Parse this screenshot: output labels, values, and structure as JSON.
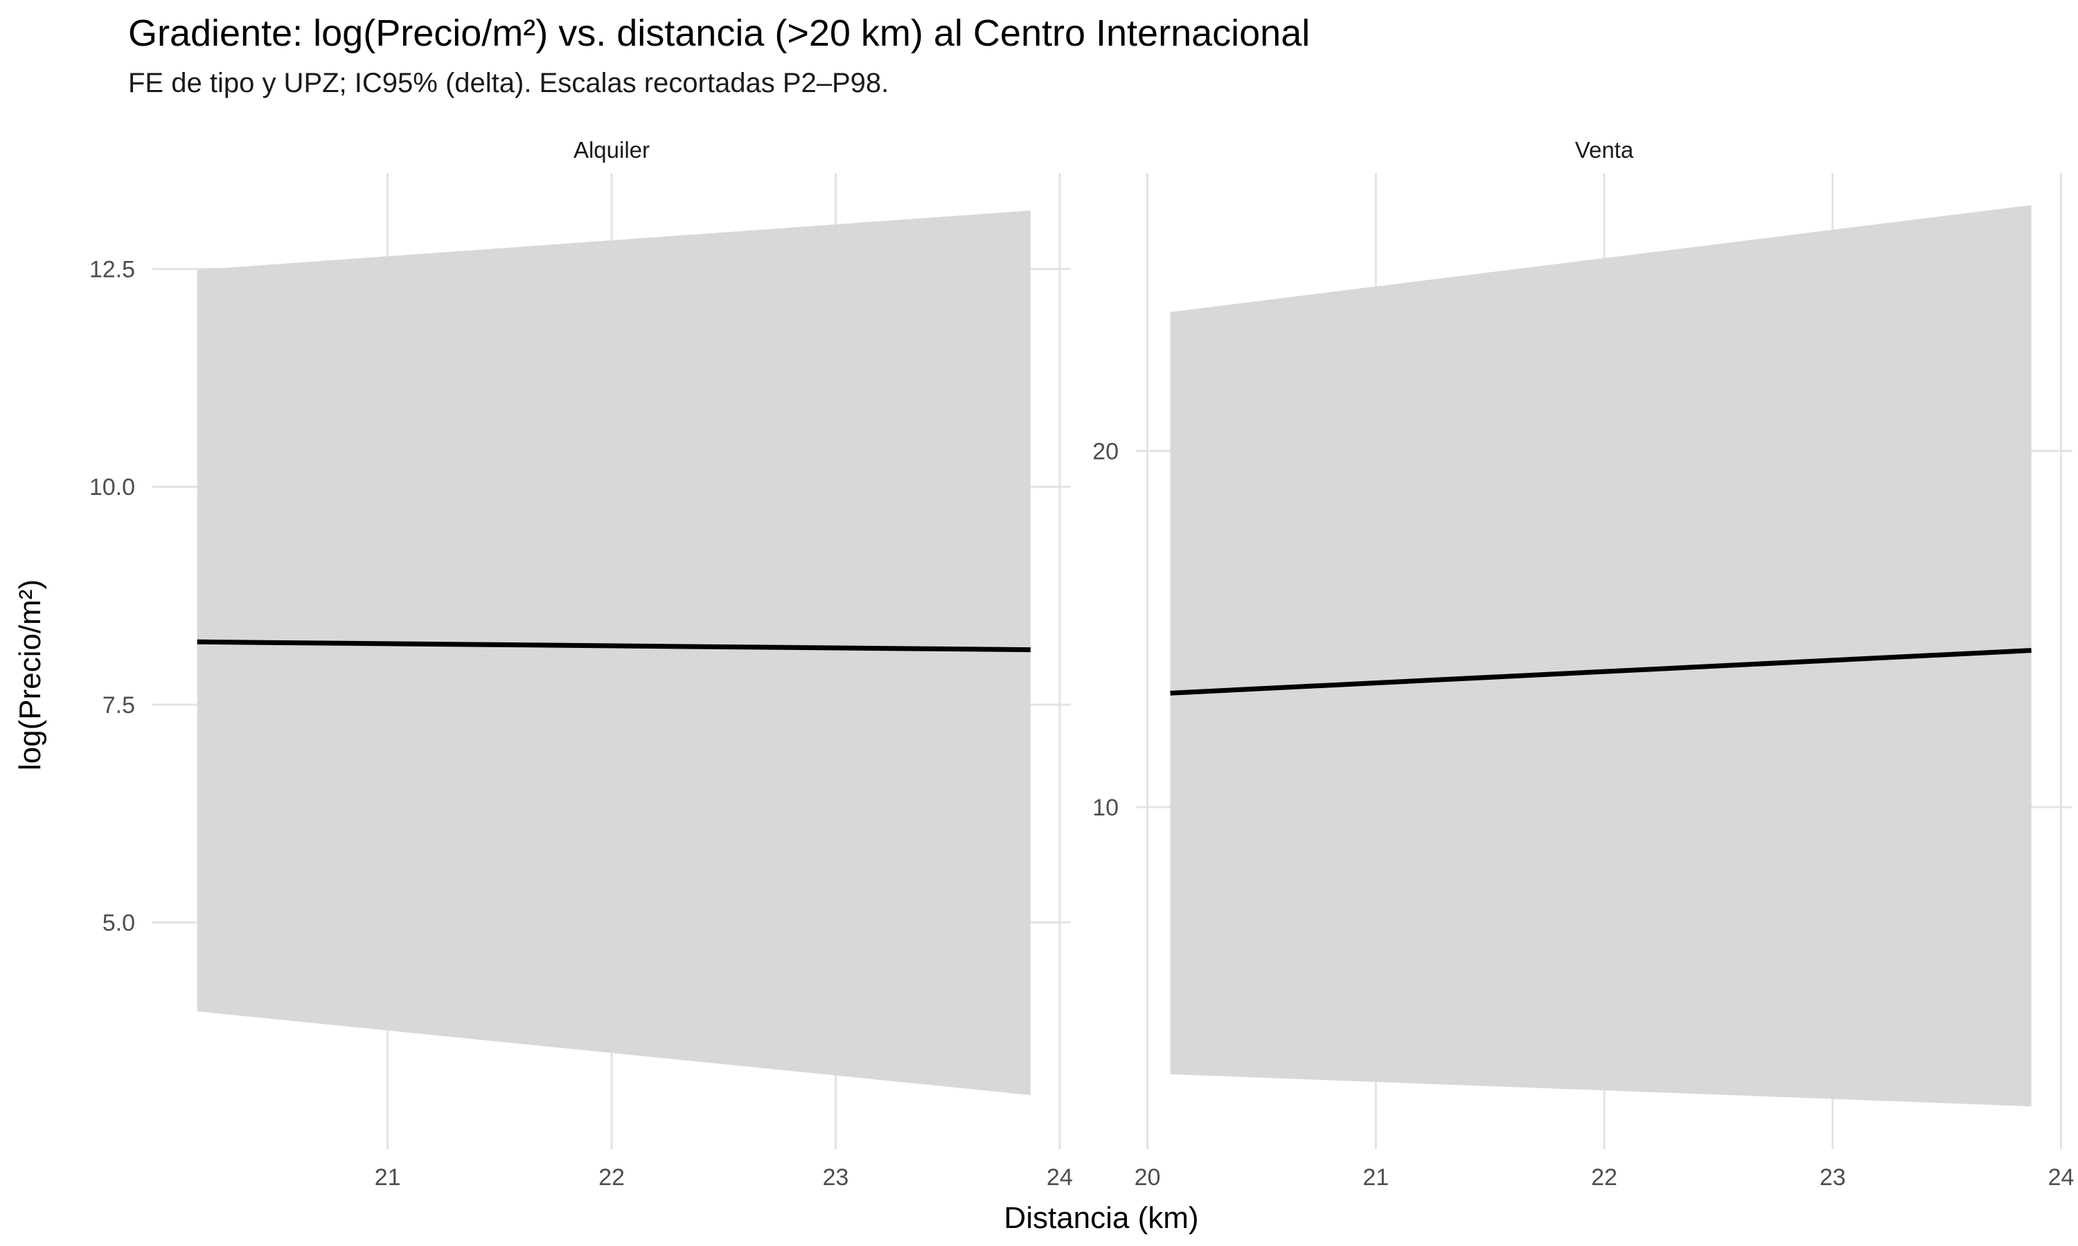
{
  "chart_data": {
    "type": "line",
    "title": "Gradiente: log(Precio/m²) vs. distancia (>20 km) al Centro Internacional",
    "subtitle": "FE de tipo y UPZ; IC95% (delta). Escalas recortadas P2–P98.",
    "xlabel": "Distancia (km)",
    "ylabel": "log(Precio/m²)",
    "grid": true,
    "legend": "none",
    "line_color": "#000000",
    "band_color": "#d6d6d6",
    "grid_color": "#e3e3e3",
    "panels": [
      {
        "name": "Alquiler",
        "xlim": [
          19.95,
          24.05
        ],
        "ylim": [
          2.4,
          13.6
        ],
        "x_ticks": [
          21,
          22,
          23,
          24
        ],
        "y_ticks": [
          5.0,
          7.5,
          10.0,
          12.5
        ],
        "y_tick_labels": [
          "5.0",
          "7.5",
          "10.0",
          "12.5"
        ],
        "x": [
          20.15,
          23.87
        ],
        "y": [
          8.22,
          8.13
        ],
        "ci_lower": [
          3.98,
          3.02
        ],
        "ci_upper": [
          12.49,
          13.17
        ]
      },
      {
        "name": "Venta",
        "x_ticks": [
          20,
          21,
          22,
          23,
          24
        ],
        "y_ticks": [
          10,
          20
        ],
        "y_tick_labels": [
          "10",
          "20"
        ],
        "xlim": [
          19.95,
          24.05
        ],
        "ylim": [
          0.4,
          27.8
        ],
        "x": [
          20.1,
          23.87
        ],
        "y": [
          13.2,
          14.4
        ],
        "ci_lower": [
          2.5,
          1.6
        ],
        "ci_upper": [
          23.9,
          26.9
        ]
      }
    ]
  }
}
